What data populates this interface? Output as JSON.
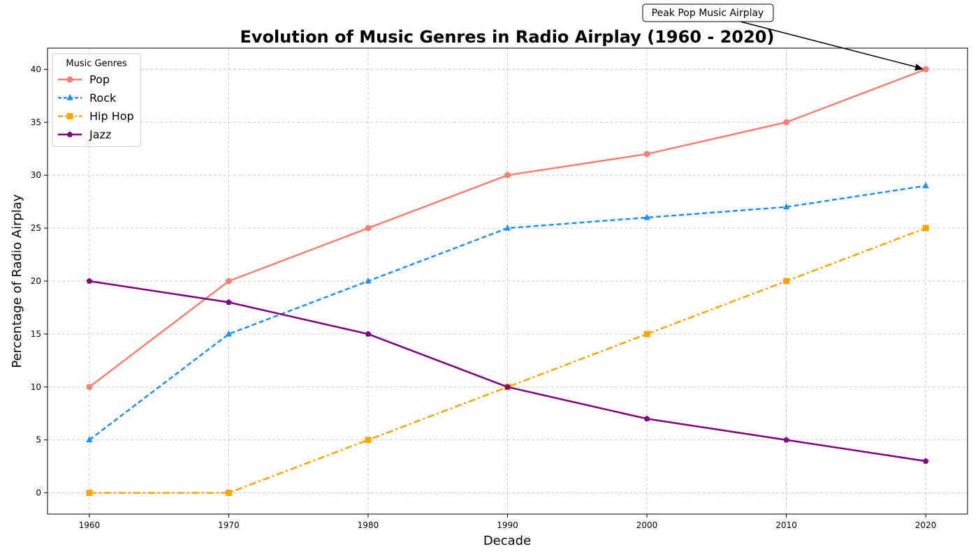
{
  "chart_data": {
    "type": "line",
    "title": "Evolution of Music Genres in Radio Airplay (1960 - 2020)",
    "xlabel": "Decade",
    "ylabel": "Percentage of Radio Airplay",
    "x": [
      1960,
      1970,
      1980,
      1990,
      2000,
      2010,
      2020
    ],
    "x_ticks": [
      "1960",
      "1970",
      "1980",
      "1990",
      "2000",
      "2010",
      "2020"
    ],
    "y_ticks": [
      "0",
      "5",
      "10",
      "15",
      "20",
      "25",
      "30",
      "35",
      "40"
    ],
    "xlim": [
      1957,
      2023
    ],
    "ylim": [
      -2,
      42
    ],
    "grid": true,
    "legend": {
      "title": "Music Genres",
      "placement": "upper-left"
    },
    "series": [
      {
        "name": "Pop",
        "values": [
          10,
          20,
          25,
          30,
          32,
          35,
          40
        ],
        "color": "#fa8072",
        "marker": "circle",
        "linestyle": "solid"
      },
      {
        "name": "Rock",
        "values": [
          5,
          15,
          20,
          25,
          26,
          27,
          29
        ],
        "color": "#1e90ff",
        "marker": "triangle",
        "linestyle": "dashed"
      },
      {
        "name": "Hip Hop",
        "values": [
          0,
          0,
          5,
          10,
          15,
          20,
          25
        ],
        "color": "#ffa500",
        "marker": "square",
        "linestyle": "dashdot"
      },
      {
        "name": "Jazz",
        "values": [
          20,
          18,
          15,
          10,
          7,
          5,
          3
        ],
        "color": "#800080",
        "marker": "pentagon",
        "linestyle": "solid"
      }
    ],
    "annotations": [
      {
        "text": "Peak Pop Music Airplay",
        "x": 2020,
        "y": 40
      }
    ]
  }
}
